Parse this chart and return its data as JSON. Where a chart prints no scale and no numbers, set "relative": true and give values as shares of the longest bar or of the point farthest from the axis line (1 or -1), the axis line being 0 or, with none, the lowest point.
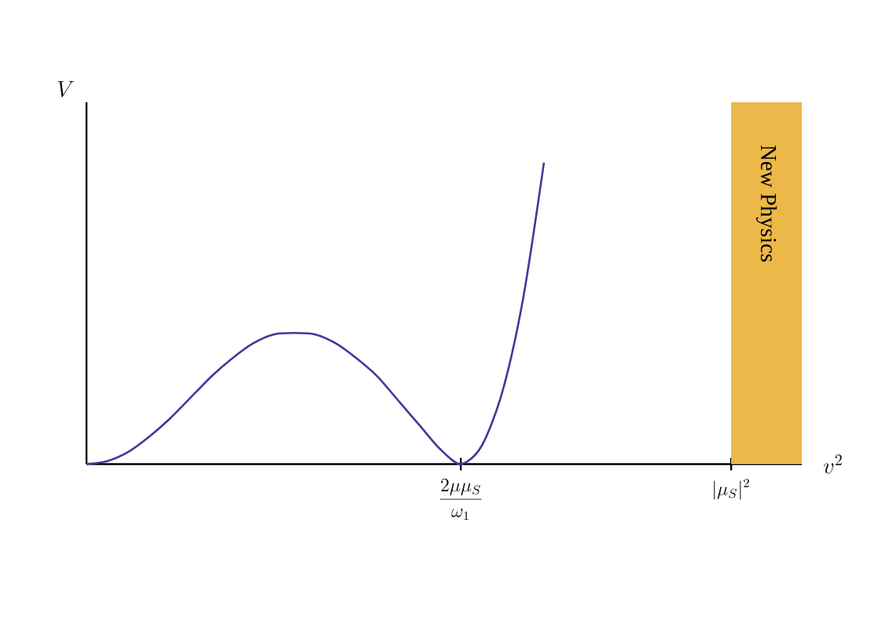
{
  "chart_data": {
    "type": "line",
    "relative": true,
    "xlabel": "v^2",
    "ylabel": "V",
    "categories": [
      null,
      null,
      null,
      null,
      null,
      null,
      null,
      null,
      null,
      null,
      null,
      null,
      null,
      null,
      null,
      null,
      null,
      null,
      "\\frac{2\\mu\\mu_S}{\\omega_1}",
      null,
      null,
      null,
      null,
      null,
      null,
      null,
      null,
      null,
      null,
      null,
      null,
      "|\\mu_S|^2",
      null,
      null,
      null
    ],
    "series": [
      {
        "color": "#3f3a9a",
        "values": [
          0,
          0.01,
          0.04,
          0.09,
          0.15,
          0.22,
          0.29,
          0.35,
          0.4,
          0.43,
          0.435,
          0.43,
          0.4,
          0.35,
          0.29,
          0.21,
          0.13,
          0.05,
          0,
          0.06,
          0.24,
          0.55,
          1,
          null,
          null,
          null,
          null,
          null,
          null,
          null,
          null,
          null,
          null,
          null,
          null
        ]
      }
    ],
    "annotations": [
      "New Physics"
    ],
    "tick_labels": "x",
    "line_style": "solid",
    "marker": "none"
  }
}
